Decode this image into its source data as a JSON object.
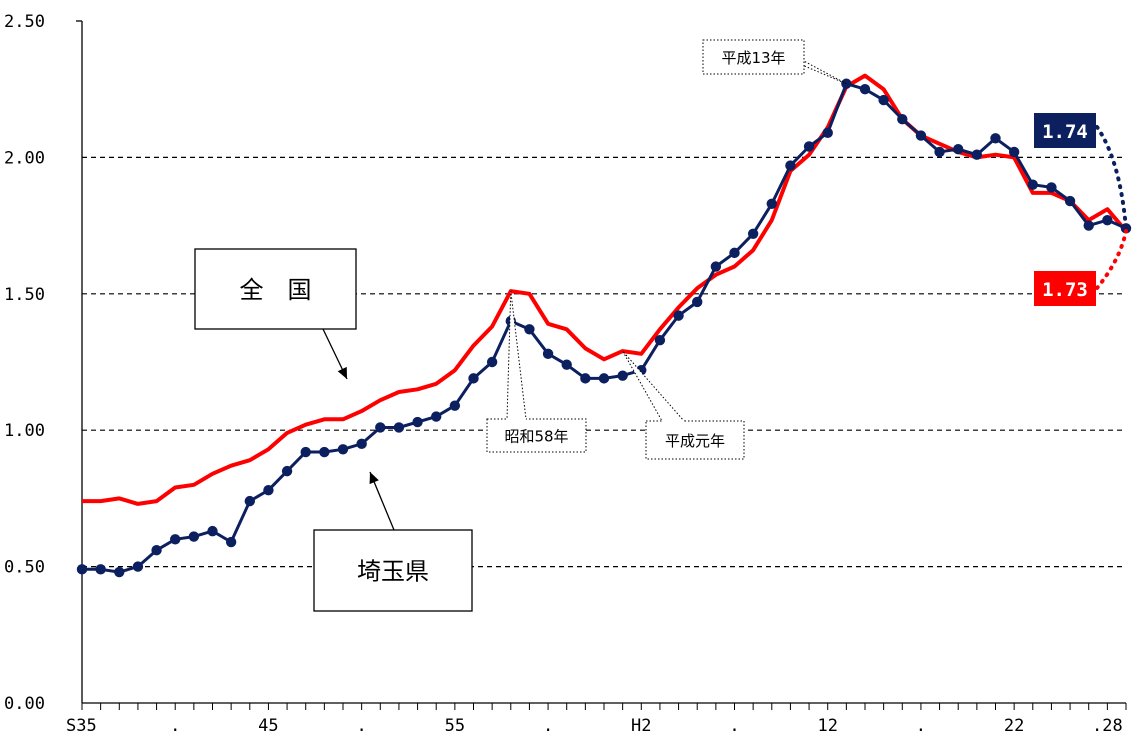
{
  "chart_data": {
    "type": "line",
    "ylim": [
      0,
      2.5
    ],
    "yticks": [
      "0.00",
      "0.50",
      "1.00",
      "1.50",
      "2.00",
      "2.50"
    ],
    "ytick_values": [
      0,
      0.5,
      1.0,
      1.5,
      2.0,
      2.5
    ],
    "xtick_labels": [
      {
        "index": 0,
        "label": "S35"
      },
      {
        "index": 5,
        "label": "."
      },
      {
        "index": 10,
        "label": "45"
      },
      {
        "index": 15,
        "label": "."
      },
      {
        "index": 20,
        "label": "55"
      },
      {
        "index": 25,
        "label": "."
      },
      {
        "index": 30,
        "label": "H2"
      },
      {
        "index": 35,
        "label": "."
      },
      {
        "index": 40,
        "label": "12"
      },
      {
        "index": 45,
        "label": "."
      },
      {
        "index": 50,
        "label": "22"
      },
      {
        "index": 55,
        "label": ".28"
      }
    ],
    "grid": "horizontal-dashed",
    "series": [
      {
        "name": "全　国",
        "color": "#ff0000",
        "markers": false,
        "values": [
          0.74,
          0.74,
          0.75,
          0.73,
          0.74,
          0.79,
          0.8,
          0.84,
          0.87,
          0.89,
          0.93,
          0.99,
          1.02,
          1.04,
          1.04,
          1.07,
          1.11,
          1.14,
          1.15,
          1.17,
          1.22,
          1.31,
          1.38,
          1.51,
          1.5,
          1.39,
          1.37,
          1.3,
          1.26,
          1.29,
          1.28,
          1.37,
          1.45,
          1.52,
          1.57,
          1.6,
          1.66,
          1.77,
          1.95,
          2.01,
          2.11,
          2.26,
          2.3,
          2.25,
          2.14,
          2.08,
          2.05,
          2.02,
          2.0,
          2.01,
          2.0,
          1.87,
          1.87,
          1.84,
          1.77,
          1.81,
          1.73
        ]
      },
      {
        "name": "埼玉県",
        "color": "#0c2060",
        "markers": true,
        "values": [
          0.49,
          0.49,
          0.48,
          0.5,
          0.56,
          0.6,
          0.61,
          0.63,
          0.59,
          0.74,
          0.78,
          0.85,
          0.92,
          0.92,
          0.93,
          0.95,
          1.01,
          1.01,
          1.03,
          1.05,
          1.09,
          1.19,
          1.25,
          1.4,
          1.37,
          1.28,
          1.24,
          1.19,
          1.19,
          1.2,
          1.22,
          1.33,
          1.42,
          1.47,
          1.6,
          1.65,
          1.72,
          1.83,
          1.97,
          2.04,
          2.09,
          2.27,
          2.25,
          2.21,
          2.14,
          2.08,
          2.02,
          2.03,
          2.01,
          2.07,
          2.02,
          1.9,
          1.89,
          1.84,
          1.75,
          1.77,
          1.74
        ]
      }
    ],
    "annotations": [
      {
        "text": "平成13年",
        "index": 41
      },
      {
        "text": "昭和58年",
        "index": 23
      },
      {
        "text": "平成元年",
        "index": 29
      }
    ],
    "end_labels": [
      {
        "text": "1.74",
        "series": "埼玉県",
        "color": "#0c2060"
      },
      {
        "text": "1.73",
        "series": "全　国",
        "color": "#ff0000"
      }
    ]
  }
}
